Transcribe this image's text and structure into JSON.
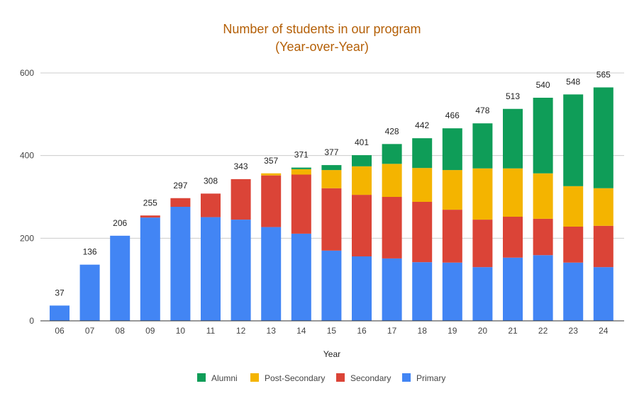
{
  "chart_data": {
    "type": "bar",
    "stacked": true,
    "title": "Number of students in our program",
    "subtitle": "(Year-over-Year)",
    "xlabel": "Year",
    "ylabel": "",
    "ylim": [
      0,
      600
    ],
    "yticks": [
      0,
      200,
      400,
      600
    ],
    "grid": true,
    "legend_position": "bottom",
    "categories": [
      "06",
      "07",
      "08",
      "09",
      "10",
      "11",
      "12",
      "13",
      "14",
      "15",
      "16",
      "17",
      "18",
      "19",
      "20",
      "21",
      "22",
      "23",
      "24"
    ],
    "series": [
      {
        "name": "Primary",
        "color": "#4285f4",
        "values": [
          37,
          136,
          206,
          250,
          276,
          251,
          245,
          227,
          211,
          170,
          156,
          151,
          142,
          141,
          130,
          153,
          159,
          141,
          130
        ]
      },
      {
        "name": "Secondary",
        "color": "#db4437",
        "values": [
          0,
          0,
          0,
          5,
          21,
          57,
          98,
          125,
          143,
          151,
          149,
          149,
          146,
          128,
          115,
          99,
          88,
          87,
          100
        ]
      },
      {
        "name": "Post-Secondary",
        "color": "#f4b400",
        "values": [
          0,
          0,
          0,
          0,
          0,
          0,
          0,
          5,
          13,
          44,
          69,
          80,
          82,
          96,
          124,
          117,
          110,
          98,
          91
        ]
      },
      {
        "name": "Alumni",
        "color": "#0f9d58",
        "values": [
          0,
          0,
          0,
          0,
          0,
          0,
          0,
          0,
          4,
          12,
          27,
          48,
          72,
          101,
          109,
          144,
          183,
          222,
          244
        ]
      }
    ],
    "totals": [
      37,
      136,
      206,
      255,
      297,
      308,
      343,
      357,
      371,
      377,
      401,
      428,
      442,
      466,
      478,
      513,
      540,
      548,
      565
    ],
    "legend_order": [
      "Alumni",
      "Post-Secondary",
      "Secondary",
      "Primary"
    ]
  }
}
